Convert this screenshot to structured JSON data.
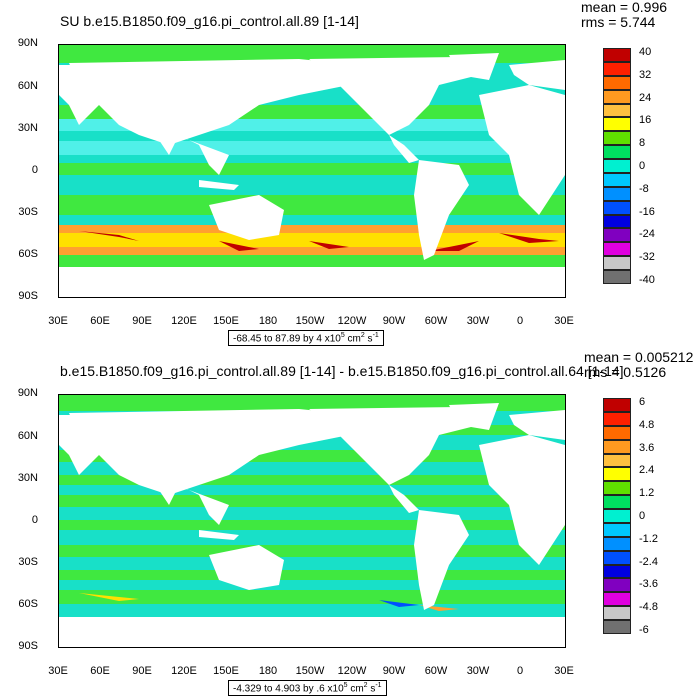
{
  "panels": [
    {
      "title": "SU b.e15.B1850.f09_g16.pi_control.all.89 [1-14]",
      "mean": "mean = 0.996",
      "rms": "rms = 5.744",
      "range_prefix": "-68.45 to 87.89 by 4 x10",
      "range_exp": "5",
      "range_unit": " cm",
      "range_unit_exp": "2",
      "range_unit2": " s",
      "range_unit2_exp": "-1",
      "colorbar_labels": [
        "40",
        "32",
        "24",
        "16",
        "8",
        "0",
        "-8",
        "-16",
        "-24",
        "-32",
        "-40"
      ],
      "colorbar_colors": [
        "#c00000",
        "#ff2000",
        "#ff6a00",
        "#ff9a20",
        "#ffc040",
        "#ffff00",
        "#60e000",
        "#00e060",
        "#00f0d0",
        "#00c8ff",
        "#0090ff",
        "#0050ff",
        "#0000e0",
        "#8000c0",
        "#e000e0",
        "#c8c8c8",
        "#707070"
      ]
    },
    {
      "title": "b.e15.B1850.f09_g16.pi_control.all.89 [1-14] - b.e15.B1850.f09_g16.pi_control.all.64 [1-14]",
      "mean": "mean = 0.005212",
      "rms": "rms = 0.5126",
      "range_prefix": "-4.329 to 4.903 by .6 x10",
      "range_exp": "5",
      "range_unit": " cm",
      "range_unit_exp": "2",
      "range_unit2": " s",
      "range_unit2_exp": "-1",
      "colorbar_labels": [
        "6",
        "4.8",
        "3.6",
        "2.4",
        "1.2",
        "0",
        "-1.2",
        "-2.4",
        "-3.6",
        "-4.8",
        "-6"
      ],
      "colorbar_colors": [
        "#c00000",
        "#ff2000",
        "#ff6a00",
        "#ff9a20",
        "#ffc040",
        "#ffff00",
        "#60e000",
        "#00e060",
        "#00f0d0",
        "#00c8ff",
        "#0090ff",
        "#0050ff",
        "#0000e0",
        "#8000c0",
        "#e000e0",
        "#c8c8c8",
        "#707070"
      ]
    }
  ],
  "lat_labels": [
    "90N",
    "60N",
    "30N",
    "0",
    "30S",
    "60S",
    "90S"
  ],
  "lon_labels": [
    "30E",
    "60E",
    "90E",
    "120E",
    "150E",
    "180",
    "150W",
    "120W",
    "90W",
    "60W",
    "30W",
    "0",
    "30E"
  ],
  "colors": {
    "ocean_base": "#18e0c8",
    "ocean_light": "#50f0e8",
    "ocean_green": "#40e840",
    "land": "#ffffff",
    "southern_yellow": "#ffe000",
    "southern_orange": "#ffa030",
    "southern_red": "#c00000"
  }
}
